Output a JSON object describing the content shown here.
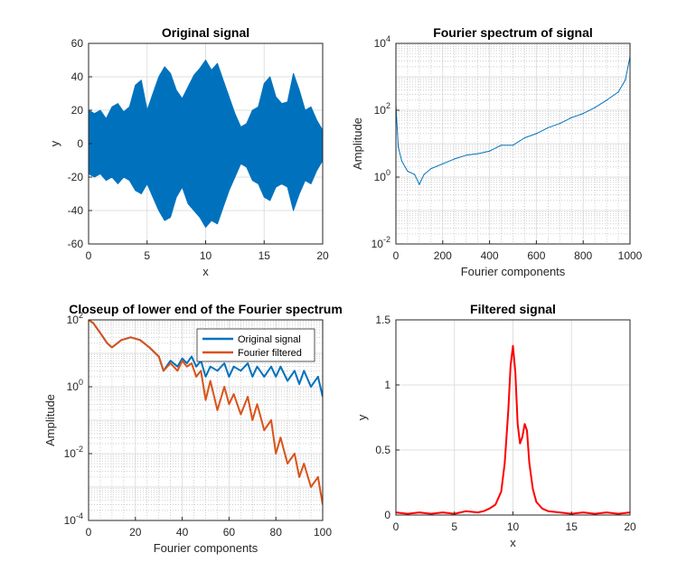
{
  "chart_data": [
    {
      "id": "p1",
      "type": "line",
      "title": "Original signal",
      "xlabel": "x",
      "ylabel": "y",
      "xlim": [
        0,
        20
      ],
      "ylim": [
        -60,
        60
      ],
      "xticks": [
        0,
        5,
        10,
        15,
        20
      ],
      "yticks": [
        -60,
        -40,
        -20,
        0,
        20,
        40,
        60
      ],
      "grid": true,
      "yscale": "linear",
      "series": [
        {
          "color": "#0072BD",
          "fill": true,
          "x": [
            0,
            0.5,
            1,
            1.5,
            2,
            2.5,
            3,
            3.5,
            4,
            4.5,
            5,
            5.5,
            6,
            6.5,
            7,
            7.5,
            8,
            8.5,
            9,
            9.5,
            10,
            10.5,
            11,
            11.5,
            12,
            12.5,
            13,
            13.5,
            14,
            14.5,
            15,
            15.5,
            16,
            16.5,
            17,
            17.5,
            18,
            18.5,
            19,
            19.5,
            20
          ],
          "upper": [
            20,
            18,
            20,
            15,
            22,
            24,
            19,
            22,
            35,
            38,
            20,
            30,
            40,
            46,
            42,
            32,
            27,
            34,
            41,
            45,
            50,
            44,
            48,
            38,
            28,
            18,
            10,
            12,
            20,
            22,
            36,
            40,
            28,
            24,
            25,
            42,
            32,
            20,
            22,
            14,
            8
          ],
          "lower": [
            -18,
            -20,
            -18,
            -22,
            -20,
            -24,
            -20,
            -22,
            -28,
            -30,
            -24,
            -32,
            -40,
            -46,
            -44,
            -32,
            -26,
            -36,
            -40,
            -44,
            -50,
            -46,
            -48,
            -38,
            -28,
            -20,
            -12,
            -14,
            -22,
            -24,
            -32,
            -34,
            -26,
            -24,
            -26,
            -40,
            -30,
            -22,
            -24,
            -16,
            -10
          ]
        }
      ]
    },
    {
      "id": "p2",
      "type": "line",
      "title": "Fourier spectrum of signal",
      "xlabel": "Fourier components",
      "ylabel": "Amplitude",
      "xlim": [
        0,
        1000
      ],
      "ylim": [
        0.01,
        10000
      ],
      "xticks": [
        0,
        200,
        400,
        600,
        800,
        1000
      ],
      "ytick_labels": [
        {
          "value": 0.01,
          "base": "10",
          "exp": "-2"
        },
        {
          "value": 1,
          "base": "10",
          "exp": "0"
        },
        {
          "value": 100,
          "base": "10",
          "exp": "2"
        },
        {
          "value": 10000,
          "base": "10",
          "exp": "4"
        }
      ],
      "grid": true,
      "yscale": "log",
      "series": [
        {
          "color": "#0072BD",
          "x": [
            0,
            10,
            25,
            50,
            80,
            100,
            120,
            150,
            200,
            250,
            300,
            350,
            400,
            450,
            500,
            550,
            600,
            650,
            700,
            750,
            800,
            850,
            900,
            950,
            980,
            1000
          ],
          "y": [
            150,
            8,
            3,
            1.5,
            1.2,
            0.6,
            1.2,
            1.8,
            2.5,
            3.5,
            4.5,
            5,
            6,
            9,
            9,
            15,
            20,
            30,
            40,
            60,
            80,
            120,
            200,
            350,
            800,
            4000
          ]
        }
      ]
    },
    {
      "id": "p3",
      "type": "line",
      "title": "Closeup of lower end of the Fourier spectrum",
      "xlabel": "Fourier components",
      "ylabel": "Amplitude",
      "xlim": [
        0,
        100
      ],
      "ylim": [
        0.0001,
        100
      ],
      "xticks": [
        0,
        20,
        40,
        60,
        80,
        100
      ],
      "ytick_labels": [
        {
          "value": 0.0001,
          "base": "10",
          "exp": "-4"
        },
        {
          "value": 0.01,
          "base": "10",
          "exp": "-2"
        },
        {
          "value": 1,
          "base": "10",
          "exp": "0"
        },
        {
          "value": 100,
          "base": "10",
          "exp": "2"
        }
      ],
      "grid": true,
      "yscale": "log",
      "legend": "top-right",
      "series": [
        {
          "name": "Original signal",
          "color": "#0072BD",
          "x": [
            0,
            2,
            5,
            8,
            10,
            14,
            18,
            22,
            26,
            30,
            32,
            35,
            38,
            40,
            42,
            44,
            46,
            48,
            50,
            52,
            55,
            58,
            60,
            62,
            65,
            68,
            70,
            72,
            75,
            78,
            80,
            82,
            85,
            88,
            90,
            92,
            95,
            98,
            100
          ],
          "y": [
            100,
            80,
            40,
            20,
            15,
            25,
            30,
            25,
            15,
            8,
            3,
            6,
            4,
            7,
            5,
            8,
            4,
            6,
            2,
            4,
            3,
            5,
            2,
            4,
            3,
            5,
            2,
            4,
            2,
            4,
            2,
            4,
            1.5,
            3,
            1.2,
            3,
            1,
            2,
            0.5
          ]
        },
        {
          "name": "Fourier filtered",
          "color": "#D95319",
          "x": [
            0,
            2,
            5,
            8,
            10,
            14,
            18,
            22,
            26,
            30,
            32,
            35,
            38,
            40,
            42,
            44,
            46,
            48,
            50,
            52,
            55,
            58,
            60,
            62,
            65,
            68,
            70,
            72,
            75,
            78,
            80,
            82,
            85,
            88,
            90,
            92,
            95,
            98,
            100
          ],
          "y": [
            100,
            80,
            40,
            20,
            15,
            25,
            30,
            25,
            15,
            8,
            3,
            5,
            3,
            6,
            4,
            5,
            2,
            3,
            0.4,
            1.5,
            0.2,
            1,
            0.3,
            0.6,
            0.15,
            0.5,
            0.1,
            0.3,
            0.05,
            0.1,
            0.01,
            0.03,
            0.005,
            0.01,
            0.002,
            0.005,
            0.001,
            0.002,
            0.0003
          ]
        }
      ]
    },
    {
      "id": "p4",
      "type": "line",
      "title": "Filtered signal",
      "xlabel": "x",
      "ylabel": "y",
      "xlim": [
        0,
        20
      ],
      "ylim": [
        0,
        1.5
      ],
      "xticks": [
        0,
        5,
        10,
        15,
        20
      ],
      "yticks": [
        0,
        0.5,
        1,
        1.5
      ],
      "grid": true,
      "yscale": "linear",
      "series": [
        {
          "color": "#FF0000",
          "x": [
            0,
            1,
            2,
            3,
            4,
            5,
            6,
            7,
            7.5,
            8,
            8.5,
            9,
            9.3,
            9.6,
            9.8,
            10,
            10.2,
            10.4,
            10.6,
            10.8,
            11,
            11.2,
            11.4,
            11.7,
            12,
            12.5,
            13,
            14,
            15,
            16,
            17,
            18,
            19,
            20
          ],
          "y": [
            0.02,
            0.01,
            0.02,
            0.01,
            0.02,
            0.01,
            0.03,
            0.02,
            0.03,
            0.05,
            0.08,
            0.18,
            0.4,
            0.8,
            1.15,
            1.3,
            1.1,
            0.7,
            0.55,
            0.6,
            0.7,
            0.65,
            0.4,
            0.2,
            0.1,
            0.05,
            0.03,
            0.02,
            0.01,
            0.02,
            0.01,
            0.02,
            0.01,
            0.02
          ]
        }
      ]
    }
  ]
}
